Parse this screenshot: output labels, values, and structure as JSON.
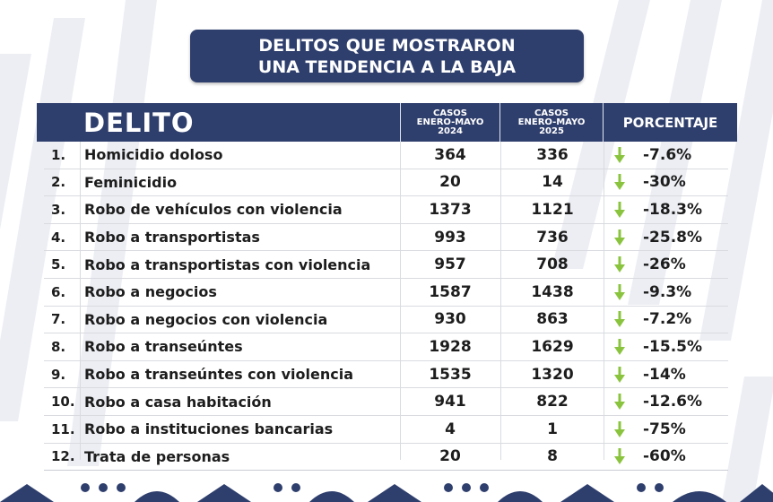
{
  "title": {
    "line1": "DELITOS QUE MOSTRARON",
    "line2": "UNA TENDENCIA A LA BAJA"
  },
  "header": {
    "delito": "DELITO",
    "col2024": {
      "l1": "CASOS",
      "l2": "ENERO-MAYO",
      "l3": "2024"
    },
    "col2025": {
      "l1": "CASOS",
      "l2": "ENERO-MAYO",
      "l3": "2025"
    },
    "porcentaje": "PORCENTAJE"
  },
  "rows": [
    {
      "num": "1.",
      "name": "Homicidio doloso",
      "v2024": "364",
      "v2025": "336",
      "pct": "-7.6%"
    },
    {
      "num": "2.",
      "name": "Feminicidio",
      "v2024": "20",
      "v2025": "14",
      "pct": "-30%"
    },
    {
      "num": "3.",
      "name": "Robo de vehículos con violencia",
      "v2024": "1373",
      "v2025": "1121",
      "pct": "-18.3%"
    },
    {
      "num": "4.",
      "name": "Robo a transportistas",
      "v2024": "993",
      "v2025": "736",
      "pct": "-25.8%"
    },
    {
      "num": "5.",
      "name": "Robo a transportistas con violencia",
      "v2024": "957",
      "v2025": "708",
      "pct": "-26%"
    },
    {
      "num": "6.",
      "name": "Robo a negocios",
      "v2024": "1587",
      "v2025": "1438",
      "pct": "-9.3%"
    },
    {
      "num": "7.",
      "name": "Robo a negocios con violencia",
      "v2024": "930",
      "v2025": "863",
      "pct": "-7.2%"
    },
    {
      "num": "8.",
      "name": "Robo a transeúntes",
      "v2024": "1928",
      "v2025": "1629",
      "pct": "-15.5%"
    },
    {
      "num": "9.",
      "name": "Robo a transeúntes con violencia",
      "v2024": "1535",
      "v2025": "1320",
      "pct": "-14%"
    },
    {
      "num": "10.",
      "name": "Robo a casa habitación",
      "v2024": "941",
      "v2025": "822",
      "pct": "-12.6%"
    },
    {
      "num": "11.",
      "name": "Robo a instituciones bancarias",
      "v2024": "4",
      "v2025": "1",
      "pct": "-75%"
    },
    {
      "num": "12.",
      "name": "Trata de personas",
      "v2024": "20",
      "v2025": "8",
      "pct": "-60%"
    }
  ],
  "icons": {
    "trend": "arrow-down-icon"
  },
  "colors": {
    "navy": "#2f3f6d",
    "arrow_green": "#8ac43f"
  }
}
